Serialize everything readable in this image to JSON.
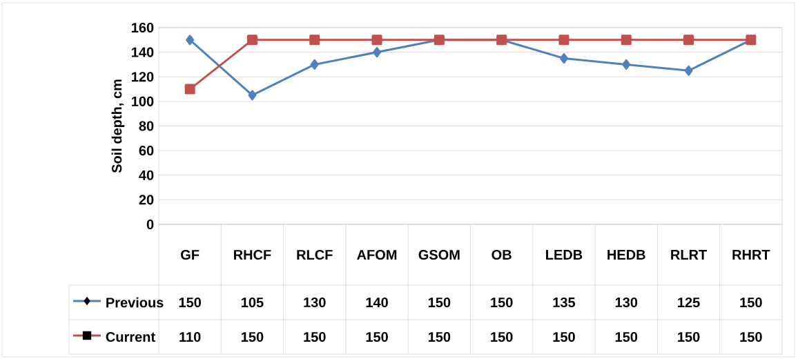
{
  "chart_data": {
    "type": "line",
    "ylabel": "Soil depth, cm",
    "categories": [
      "GF",
      "RHCF",
      "RLCF",
      "AFOM",
      "GSOM",
      "OB",
      "LEDB",
      "HEDB",
      "RLRT",
      "RHRT"
    ],
    "series": [
      {
        "name": "Previous",
        "color": "#4f81bd",
        "marker": "diamond",
        "values": [
          150,
          105,
          130,
          140,
          150,
          150,
          135,
          130,
          125,
          150
        ]
      },
      {
        "name": "Current",
        "color": "#c0504d",
        "marker": "square",
        "values": [
          110,
          150,
          150,
          150,
          150,
          150,
          150,
          150,
          150,
          150
        ]
      }
    ],
    "ylim": [
      0,
      160
    ],
    "yticks": [
      0,
      20,
      40,
      60,
      80,
      100,
      120,
      140,
      160
    ],
    "grid": "y",
    "legend": "bottom",
    "data_labels": true
  }
}
